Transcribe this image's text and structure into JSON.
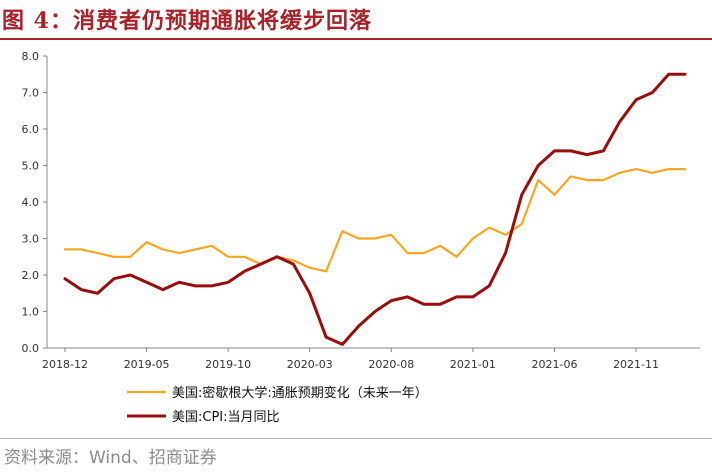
{
  "page_title": "图 4：消费者仍预期通胀将缓步回落",
  "source": "资料来源：Wind、招商证券",
  "colors": {
    "title": "#a8222a",
    "series_1": "#f5a623",
    "series_2": "#9b0c0c",
    "axis": "#888888"
  },
  "chart_data": {
    "type": "line",
    "title": "图 4：消费者仍预期通胀将缓步回落",
    "xlabel": "",
    "ylabel": "",
    "ylim": [
      0,
      8
    ],
    "yticks": [
      "0.0",
      "1.0",
      "2.0",
      "3.0",
      "4.0",
      "5.0",
      "6.0",
      "7.0",
      "8.0"
    ],
    "x_ticks": [
      "2018-12",
      "2019-05",
      "2019-10",
      "2020-03",
      "2020-08",
      "2021-01",
      "2021-06",
      "2021-11"
    ],
    "x": [
      "2018-12",
      "2019-01",
      "2019-02",
      "2019-03",
      "2019-04",
      "2019-05",
      "2019-06",
      "2019-07",
      "2019-08",
      "2019-09",
      "2019-10",
      "2019-11",
      "2019-12",
      "2020-01",
      "2020-02",
      "2020-03",
      "2020-04",
      "2020-05",
      "2020-06",
      "2020-07",
      "2020-08",
      "2020-09",
      "2020-10",
      "2020-11",
      "2020-12",
      "2021-01",
      "2021-02",
      "2021-03",
      "2021-04",
      "2021-05",
      "2021-06",
      "2021-07",
      "2021-08",
      "2021-09",
      "2021-10",
      "2021-11",
      "2021-12",
      "2022-01",
      "2022-02"
    ],
    "series": [
      {
        "name": "美国:密歇根大学:通胀预期变化（未来一年）",
        "values": [
          2.7,
          2.7,
          2.6,
          2.5,
          2.5,
          2.9,
          2.7,
          2.6,
          2.7,
          2.8,
          2.5,
          2.5,
          2.3,
          2.5,
          2.4,
          2.2,
          2.1,
          3.2,
          3.0,
          3.0,
          3.1,
          2.6,
          2.6,
          2.8,
          2.5,
          3.0,
          3.3,
          3.1,
          3.4,
          4.6,
          4.2,
          4.7,
          4.6,
          4.6,
          4.8,
          4.9,
          4.8,
          4.9,
          4.9
        ]
      },
      {
        "name": "美国:CPI:当月同比",
        "values": [
          1.9,
          1.6,
          1.5,
          1.9,
          2.0,
          1.8,
          1.6,
          1.8,
          1.7,
          1.7,
          1.8,
          2.1,
          2.3,
          2.5,
          2.3,
          1.5,
          0.3,
          0.1,
          0.6,
          1.0,
          1.3,
          1.4,
          1.2,
          1.2,
          1.4,
          1.4,
          1.7,
          2.6,
          4.2,
          5.0,
          5.4,
          5.4,
          5.3,
          5.4,
          6.2,
          6.8,
          7.0,
          7.5,
          7.5
        ]
      }
    ],
    "legend_position": "bottom"
  }
}
